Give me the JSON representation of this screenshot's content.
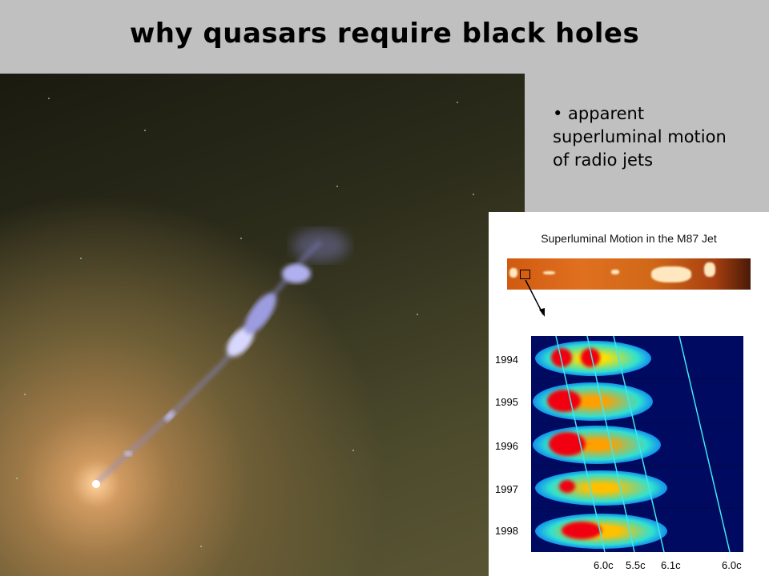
{
  "title": "why quasars require black holes",
  "bullet": "• apparent superluminal motion of radio jets",
  "inset": {
    "title": "Superluminal Motion in the M87 Jet",
    "years": [
      "1994",
      "1995",
      "1996",
      "1997",
      "1998"
    ],
    "speeds": [
      "6.0c",
      "5.5c",
      "6.1c",
      "6.0c"
    ]
  }
}
